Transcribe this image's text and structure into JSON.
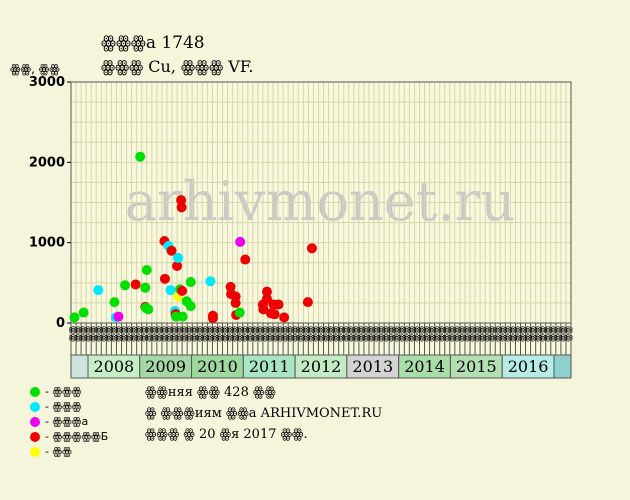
{
  "header": {
    "title_line1": "ꙮꙮꙮа 1748",
    "title_line2": "ꙮꙮꙮ Cu, ꙮꙮꙮ VF.",
    "y_unit": "ꙮꙮ, ꙮꙮ"
  },
  "watermark": "arhivmonet.ru",
  "chart_data": {
    "type": "scatter",
    "ylim": [
      0,
      3000
    ],
    "y_ticks": [
      0,
      1000,
      2000,
      3000
    ],
    "grid": true,
    "x_categories": [
      "ꙮꙮ",
      "ꙮꙮ",
      "ꙮꙮ",
      "ꙮꙮ",
      "ꙮꙮ",
      "ꙮꙮ",
      "ꙮꙮ",
      "ꙮꙮ",
      "ꙮꙮ",
      "ꙮꙮ",
      "ꙮꙮ",
      "ꙮꙮ",
      "ꙮꙮ",
      "ꙮꙮ",
      "ꙮꙮ",
      "ꙮꙮ",
      "ꙮꙮ",
      "ꙮꙮ",
      "ꙮꙮ",
      "ꙮꙮ",
      "ꙮꙮ",
      "ꙮꙮ",
      "ꙮꙮ",
      "ꙮꙮ",
      "ꙮꙮ",
      "ꙮꙮ",
      "ꙮꙮ",
      "ꙮꙮ",
      "ꙮꙮ",
      "ꙮꙮ",
      "ꙮꙮ",
      "ꙮꙮ",
      "ꙮꙮ",
      "ꙮꙮ",
      "ꙮꙮ",
      "ꙮꙮ",
      "ꙮꙮ",
      "ꙮꙮ",
      "ꙮꙮ",
      "ꙮꙮ",
      "ꙮꙮ",
      "ꙮꙮ",
      "ꙮꙮ",
      "ꙮꙮ",
      "ꙮꙮ",
      "ꙮꙮ",
      "ꙮꙮ",
      "ꙮꙮ",
      "ꙮꙮ",
      "ꙮꙮ",
      "ꙮꙮ",
      "ꙮꙮ",
      "ꙮꙮ",
      "ꙮꙮ",
      "ꙮꙮ",
      "ꙮꙮ",
      "ꙮꙮ",
      "ꙮꙮ",
      "ꙮꙮ",
      "ꙮꙮ",
      "ꙮꙮ",
      "ꙮꙮ",
      "ꙮꙮ",
      "ꙮꙮ",
      "ꙮꙮ",
      "ꙮꙮ",
      "ꙮꙮ",
      "ꙮꙮ",
      "ꙮꙮ",
      "ꙮꙮ",
      "ꙮꙮ",
      "ꙮꙮ",
      "ꙮꙮ",
      "ꙮꙮ",
      "ꙮꙮ",
      "ꙮꙮ",
      "ꙮꙮ",
      "ꙮꙮ",
      "ꙮꙮ",
      "ꙮꙮ",
      "ꙮꙮ",
      "ꙮꙮ",
      "ꙮꙮ",
      "ꙮꙮ",
      "ꙮꙮ",
      "ꙮꙮ",
      "ꙮꙮ",
      "ꙮꙮ",
      "ꙮꙮ",
      "ꙮꙮ",
      "ꙮꙮ",
      "ꙮꙮ",
      "ꙮꙮ",
      "ꙮꙮ",
      "ꙮꙮ",
      "ꙮꙮ",
      "ꙮꙮ",
      "ꙮꙮ",
      "ꙮꙮ"
    ],
    "years": [
      {
        "label": "2008",
        "color": "#c6eec6"
      },
      {
        "label": "2009",
        "color": "#a6d7a6"
      },
      {
        "label": "2010",
        "color": "#9ed89e"
      },
      {
        "label": "2011",
        "color": "#a8e6c4"
      },
      {
        "label": "2012",
        "color": "#c3ebc3"
      },
      {
        "label": "2013",
        "color": "#d3d3d3"
      },
      {
        "label": "2014",
        "color": "#a8dca8"
      },
      {
        "label": "2015",
        "color": "#b3dfb3"
      },
      {
        "label": "2016",
        "color": "#b6ece6"
      }
    ],
    "point_colors": {
      "green": "#00e000",
      "cyan": "#00e8ff",
      "magenta": "#ee00ee",
      "red": "#ee0000",
      "yellow": "#ffff00"
    },
    "points": [
      {
        "x": 0.2,
        "y": 70,
        "c": "green"
      },
      {
        "x": 2.0,
        "y": 130,
        "c": "green"
      },
      {
        "x": 4.9,
        "y": 410,
        "c": "cyan"
      },
      {
        "x": 8.1,
        "y": 260,
        "c": "green"
      },
      {
        "x": 8.4,
        "y": 70,
        "c": "cyan"
      },
      {
        "x": 8.9,
        "y": 80,
        "c": "magenta"
      },
      {
        "x": 10.2,
        "y": 470,
        "c": "green"
      },
      {
        "x": 12.3,
        "y": 480,
        "c": "red"
      },
      {
        "x": 13.2,
        "y": 2070,
        "c": "green"
      },
      {
        "x": 14.2,
        "y": 440,
        "c": "green"
      },
      {
        "x": 14.2,
        "y": 200,
        "c": "red"
      },
      {
        "x": 14.3,
        "y": 190,
        "c": "green"
      },
      {
        "x": 14.5,
        "y": 660,
        "c": "green"
      },
      {
        "x": 14.8,
        "y": 170,
        "c": "green"
      },
      {
        "x": 18.0,
        "y": 1020,
        "c": "red"
      },
      {
        "x": 18.1,
        "y": 550,
        "c": "red"
      },
      {
        "x": 18.8,
        "y": 960,
        "c": "cyan"
      },
      {
        "x": 19.2,
        "y": 410,
        "c": "cyan"
      },
      {
        "x": 19.4,
        "y": 900,
        "c": "red"
      },
      {
        "x": 20.1,
        "y": 150,
        "c": "cyan"
      },
      {
        "x": 20.2,
        "y": 110,
        "c": "red"
      },
      {
        "x": 20.3,
        "y": 80,
        "c": "green"
      },
      {
        "x": 20.5,
        "y": 710,
        "c": "red"
      },
      {
        "x": 20.7,
        "y": 810,
        "c": "cyan"
      },
      {
        "x": 20.7,
        "y": 330,
        "c": "yellow"
      },
      {
        "x": 21.1,
        "y": 420,
        "c": "green"
      },
      {
        "x": 21.3,
        "y": 1530,
        "c": "red"
      },
      {
        "x": 21.4,
        "y": 1440,
        "c": "red"
      },
      {
        "x": 21.5,
        "y": 400,
        "c": "red"
      },
      {
        "x": 21.6,
        "y": 80,
        "c": "green"
      },
      {
        "x": 22.4,
        "y": 270,
        "c": "green"
      },
      {
        "x": 23.2,
        "y": 510,
        "c": "green"
      },
      {
        "x": 23.2,
        "y": 210,
        "c": "green"
      },
      {
        "x": 27.1,
        "y": 520,
        "c": "cyan"
      },
      {
        "x": 27.6,
        "y": 90,
        "c": "red"
      },
      {
        "x": 27.6,
        "y": 60,
        "c": "red"
      },
      {
        "x": 31.1,
        "y": 450,
        "c": "red"
      },
      {
        "x": 31.2,
        "y": 360,
        "c": "red"
      },
      {
        "x": 32.1,
        "y": 330,
        "c": "red"
      },
      {
        "x": 32.1,
        "y": 250,
        "c": "red"
      },
      {
        "x": 32.2,
        "y": 100,
        "c": "red"
      },
      {
        "x": 32.9,
        "y": 130,
        "c": "green"
      },
      {
        "x": 33.0,
        "y": 1010,
        "c": "magenta"
      },
      {
        "x": 34.0,
        "y": 790,
        "c": "red"
      },
      {
        "x": 37.5,
        "y": 230,
        "c": "red"
      },
      {
        "x": 37.6,
        "y": 170,
        "c": "red"
      },
      {
        "x": 38.3,
        "y": 390,
        "c": "red"
      },
      {
        "x": 38.3,
        "y": 300,
        "c": "red"
      },
      {
        "x": 39.1,
        "y": 120,
        "c": "red"
      },
      {
        "x": 39.6,
        "y": 230,
        "c": "red"
      },
      {
        "x": 39.8,
        "y": 110,
        "c": "red"
      },
      {
        "x": 40.6,
        "y": 230,
        "c": "red"
      },
      {
        "x": 41.7,
        "y": 70,
        "c": "red"
      },
      {
        "x": 46.4,
        "y": 260,
        "c": "red"
      },
      {
        "x": 47.2,
        "y": 930,
        "c": "red"
      }
    ]
  },
  "legend": [
    {
      "color": "#00e000",
      "label": "- ꙮꙮꙮ"
    },
    {
      "color": "#00e8ff",
      "label": "- ꙮꙮꙮ"
    },
    {
      "color": "#ee00ee",
      "label": "- ꙮꙮꙮа"
    },
    {
      "color": "#ee0000",
      "label": "- ꙮꙮꙮꙮꙮБ"
    },
    {
      "color": "#ffff00",
      "label": "- ꙮꙮ"
    }
  ],
  "notes": [
    "ꙮꙮняя ꙮꙮ 428 ꙮꙮ",
    "ꙮ ꙮꙮꙮиям ꙮꙮа ARHIVMONET.RU",
    "ꙮꙮꙮ ꙮ 20 ꙮя 2017 ꙮꙮ."
  ]
}
